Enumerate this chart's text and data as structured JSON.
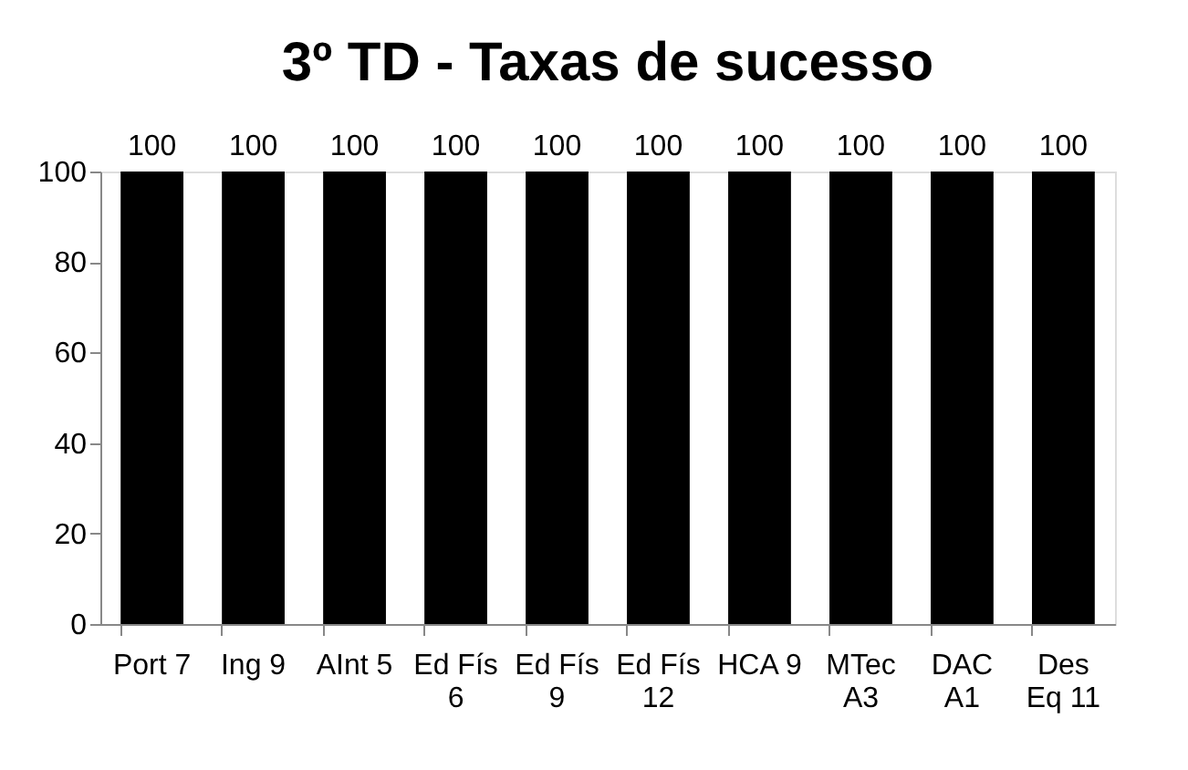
{
  "chart_data": {
    "type": "bar",
    "title": "3º TD - Taxas de sucesso",
    "categories": [
      "Port 7",
      "Ing 9",
      "AInt 5",
      "Ed Fís 6",
      "Ed Fís 9",
      "Ed Fís 12",
      "HCA 9",
      "MTec A3",
      "DAC A1",
      "Des Eq 11"
    ],
    "values": [
      100,
      100,
      100,
      100,
      100,
      100,
      100,
      100,
      100,
      100
    ],
    "color": "#000000",
    "ylim": [
      0,
      100
    ],
    "yticks": [
      0,
      20,
      40,
      60,
      80,
      100
    ],
    "data_labels": true,
    "grid": false
  }
}
